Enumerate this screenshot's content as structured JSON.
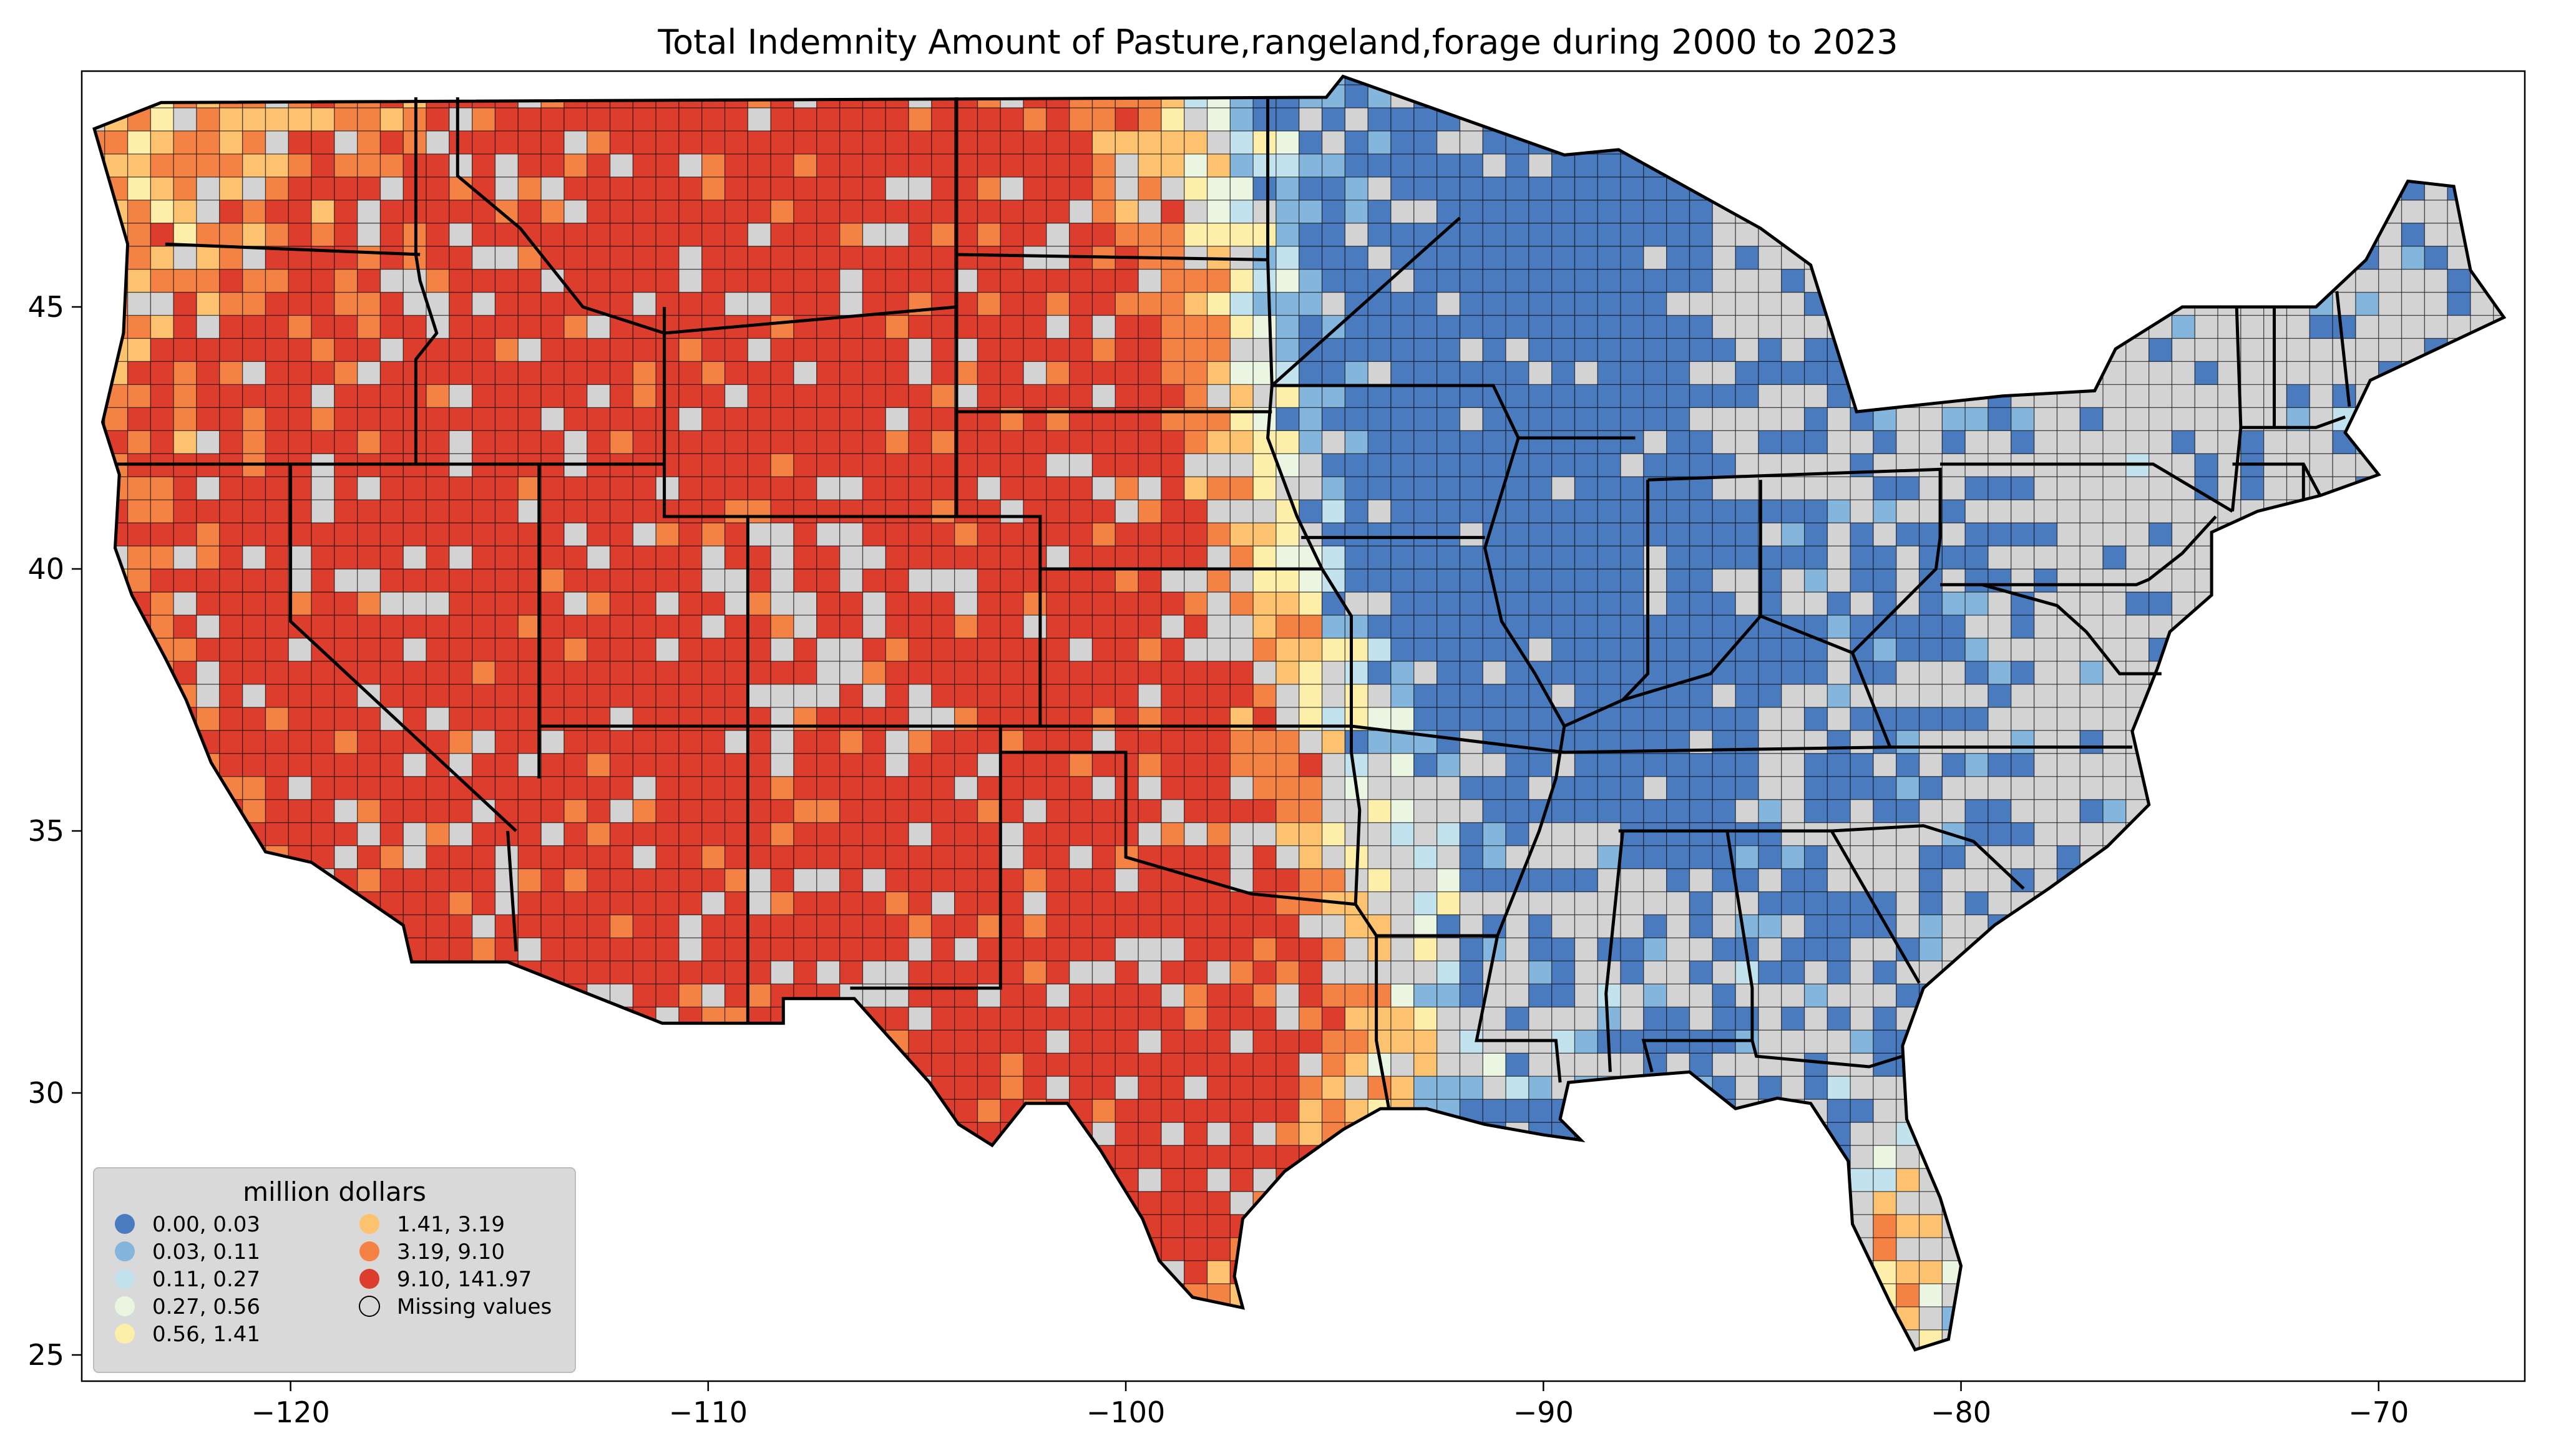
{
  "chart_data": {
    "type": "choropleth",
    "title": "Total Indemnity Amount of Pasture,rangeland,forage during 2000 to 2023",
    "x_ticks": [
      -120,
      -110,
      -100,
      -90,
      -80,
      -70
    ],
    "y_ticks": [
      45,
      40,
      35,
      30,
      25
    ],
    "xlim": [
      -125,
      -66.5
    ],
    "ylim": [
      24.5,
      49.5
    ],
    "legend": {
      "title": "million dollars",
      "placement": "lower-left",
      "entries": [
        {
          "label": "0.00,   0.03",
          "color": "#4a7bbf",
          "max": 0.03
        },
        {
          "label": "0.03,   0.11",
          "color": "#84b6dd",
          "max": 0.11
        },
        {
          "label": "0.11,   0.27",
          "color": "#c2e2ee",
          "max": 0.27
        },
        {
          "label": "0.27,   0.56",
          "color": "#eaf6e2",
          "max": 0.56
        },
        {
          "label": "0.56,   1.41",
          "color": "#fdeea9",
          "max": 1.41
        },
        {
          "label": "1.41,   3.19",
          "color": "#fcc270",
          "max": 3.19
        },
        {
          "label": "3.19,   9.10",
          "color": "#f58245",
          "max": 9.1
        },
        {
          "label": "9.10, 141.97",
          "color": "#dd3d2d",
          "max": 141.97
        },
        {
          "label": "Missing values",
          "color": "#d3d3d3",
          "missing": true
        }
      ]
    }
  }
}
